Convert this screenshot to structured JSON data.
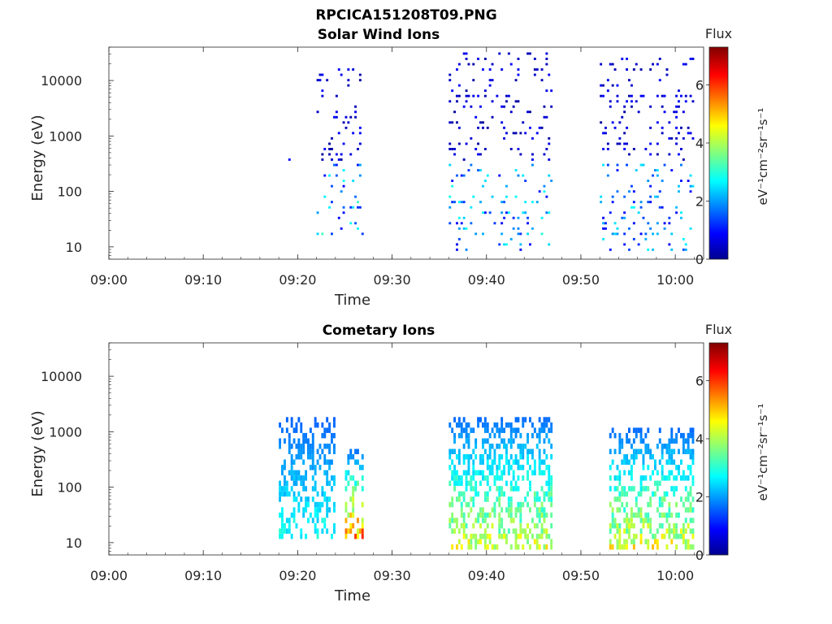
{
  "figure": {
    "title": "RPCICA151208T09.PNG"
  },
  "chart_data": [
    {
      "type": "heatmap",
      "title": "Solar Wind Ions",
      "xlabel": "Time",
      "ylabel": "Energy (eV)",
      "x_range": [
        "09:00",
        "10:03"
      ],
      "x_ticks": [
        "09:00",
        "09:10",
        "09:20",
        "09:30",
        "09:40",
        "09:50",
        "10:00"
      ],
      "y_scale": "log",
      "y_range": [
        6,
        40000
      ],
      "y_ticks": [
        "10",
        "100",
        "1000",
        "10000"
      ],
      "grid": false,
      "colorbar": {
        "title": "Flux",
        "unit_label": "eV⁻¹cm⁻²sr⁻¹s⁻¹",
        "range": [
          0,
          7.3
        ],
        "ticks": [
          "0",
          "2",
          "4",
          "6"
        ],
        "colormap": "jet"
      },
      "bursts": [
        {
          "t0": "09:19",
          "t1": "09:20",
          "emin": 350,
          "emax": 700,
          "flux": 0.4,
          "note": "isolated points"
        },
        {
          "t0": "09:22",
          "t1": "09:27",
          "emin": 15,
          "emax": 15000,
          "flux_peak": 3.2
        },
        {
          "t0": "09:36",
          "t1": "09:47",
          "emin": 8,
          "emax": 35000,
          "flux_peak": 3.0
        },
        {
          "t0": "09:52",
          "t1": "10:02",
          "emin": 8,
          "emax": 25000,
          "flux_peak": 2.8
        }
      ]
    },
    {
      "type": "heatmap",
      "title": "Cometary Ions",
      "xlabel": "Time",
      "ylabel": "Energy (eV)",
      "x_range": [
        "09:00",
        "10:03"
      ],
      "x_ticks": [
        "09:00",
        "09:10",
        "09:20",
        "09:30",
        "09:40",
        "09:50",
        "10:00"
      ],
      "y_scale": "log",
      "y_range": [
        6,
        40000
      ],
      "y_ticks": [
        "10",
        "100",
        "1000",
        "10000"
      ],
      "grid": false,
      "colorbar": {
        "title": "Flux",
        "unit_label": "eV⁻¹cm⁻²sr⁻¹s⁻¹",
        "range": [
          0,
          7.3
        ],
        "ticks": [
          "0",
          "2",
          "4",
          "6"
        ],
        "colormap": "jet"
      },
      "bursts": [
        {
          "t0": "09:18",
          "t1": "09:24",
          "emin": 12,
          "emax": 1700,
          "flux_peak": 3.2
        },
        {
          "t0": "09:25",
          "t1": "09:27",
          "emin": 12,
          "emax": 500,
          "flux_peak": 6.5
        },
        {
          "t0": "09:36",
          "t1": "09:47",
          "emin": 7,
          "emax": 2000,
          "flux_peak": 5.0
        },
        {
          "t0": "09:53",
          "t1": "10:02",
          "emin": 7,
          "emax": 1200,
          "flux_peak": 5.2
        }
      ]
    }
  ]
}
